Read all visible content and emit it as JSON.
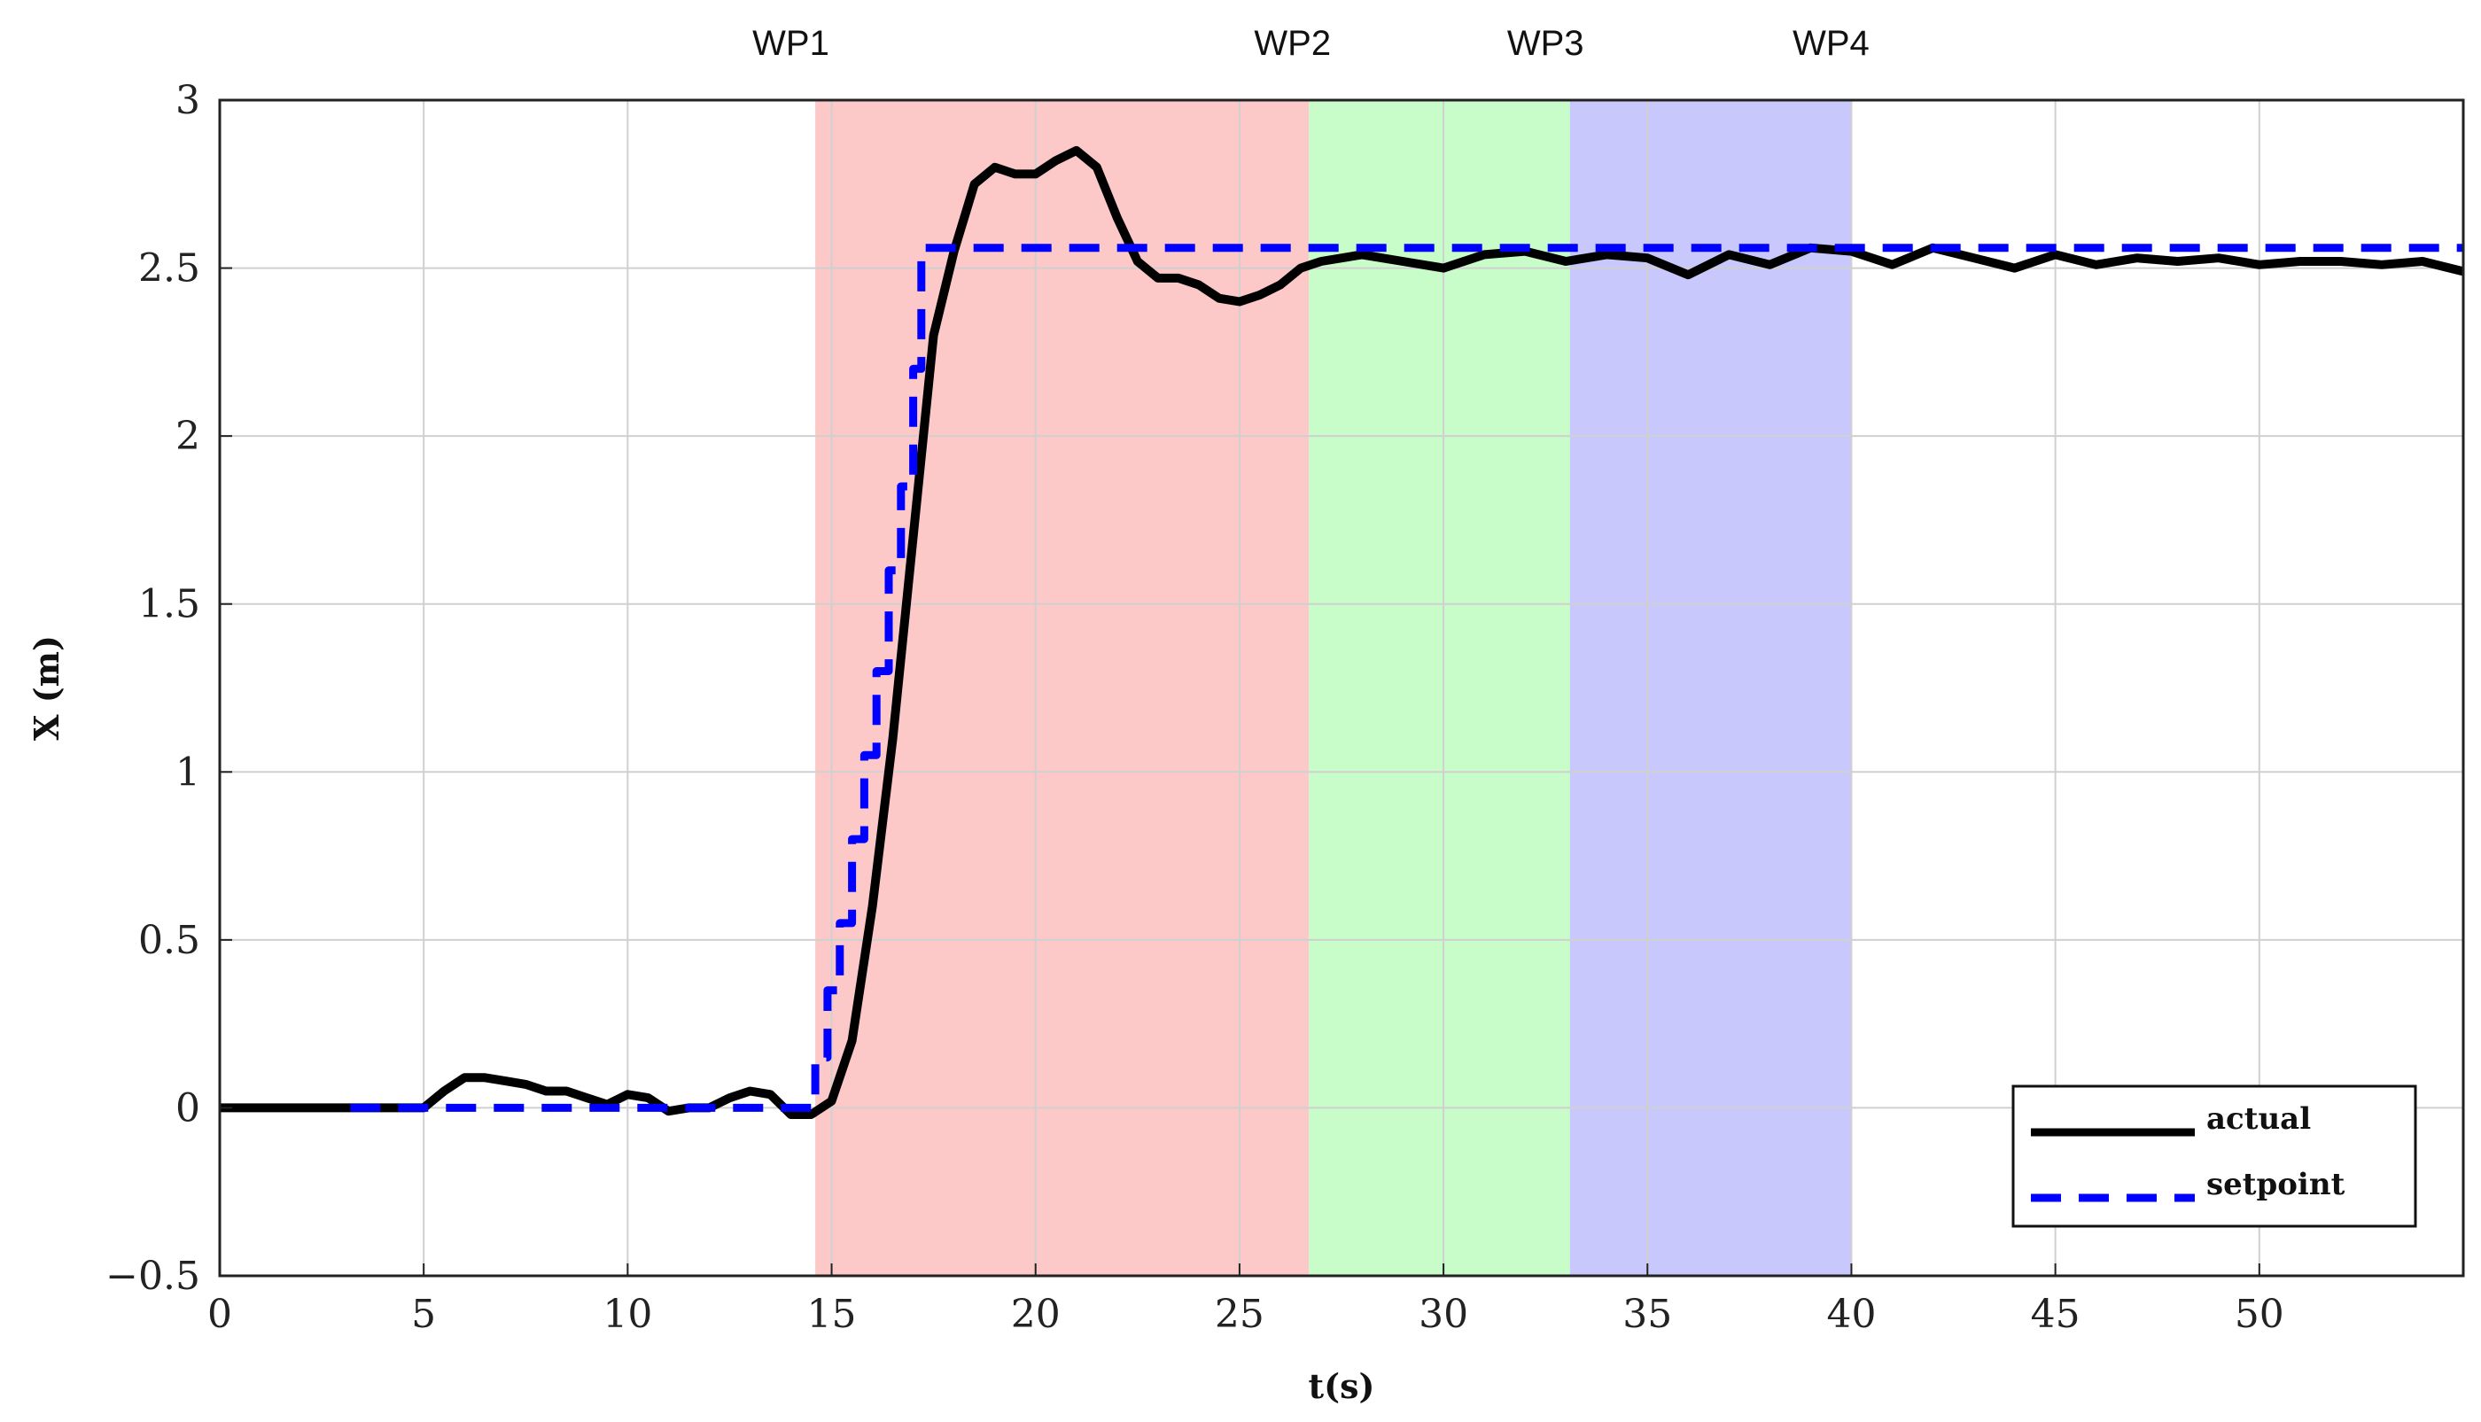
{
  "chart_data": {
    "type": "line",
    "title": "",
    "xlabel": "t(s)",
    "ylabel": "X (m)",
    "xlim": [
      0,
      55
    ],
    "ylim": [
      -0.5,
      3
    ],
    "grid": true,
    "x_ticks": [
      0,
      5,
      10,
      15,
      20,
      25,
      30,
      35,
      40,
      45,
      50
    ],
    "x_tick_labels": [
      "0",
      "5",
      "10",
      "15",
      "20",
      "25",
      "30",
      "35",
      "40",
      "45",
      "50"
    ],
    "y_ticks": [
      -0.5,
      0,
      0.5,
      1,
      1.5,
      2,
      2.5,
      3
    ],
    "y_tick_labels": [
      "−0.5",
      "0",
      "0.5",
      "1",
      "1.5",
      "2",
      "2.5",
      "3"
    ],
    "regions": [
      {
        "label": "WP1",
        "x_start": 14.6,
        "x_end": 26.7,
        "color": "#fcc8c8"
      },
      {
        "label": "WP2",
        "x_start": 26.7,
        "x_end": 33.1,
        "color": "#c8fcc8"
      },
      {
        "label": "WP3",
        "x_start": 33.1,
        "x_end": 40.0,
        "color": "#c8c8fc"
      },
      {
        "label": "WP4",
        "x_start": 40.0,
        "x_end": 40.0,
        "color": "#ffffff"
      }
    ],
    "wp_labels": [
      {
        "text": "WP1",
        "x": 14.0
      },
      {
        "text": "WP2",
        "x": 26.3
      },
      {
        "text": "WP3",
        "x": 32.5
      },
      {
        "text": "WP4",
        "x": 39.5
      }
    ],
    "legend": {
      "position": "bottom-right",
      "entries": [
        "actual",
        "setpoint"
      ]
    },
    "series": [
      {
        "name": "actual",
        "color": "#000000",
        "style": "solid",
        "x": [
          0,
          1,
          2,
          3,
          4,
          5,
          5.5,
          6,
          6.5,
          7,
          7.5,
          8,
          8.5,
          9,
          9.5,
          10,
          10.5,
          11,
          11.5,
          12,
          12.5,
          13,
          13.5,
          14,
          14.5,
          15,
          15.5,
          16,
          16.5,
          17,
          17.5,
          18,
          18.5,
          19,
          19.5,
          20,
          20.5,
          21,
          21.5,
          22,
          22.5,
          23,
          23.5,
          24,
          24.5,
          25,
          25.5,
          26,
          26.5,
          27,
          28,
          29,
          30,
          31,
          32,
          33,
          34,
          35,
          36,
          37,
          38,
          39,
          40,
          41,
          42,
          43,
          44,
          45,
          46,
          47,
          48,
          49,
          50,
          51,
          52,
          53,
          54,
          55
        ],
        "y": [
          0,
          0,
          0,
          0,
          0,
          0,
          0.05,
          0.09,
          0.09,
          0.08,
          0.07,
          0.05,
          0.05,
          0.03,
          0.01,
          0.04,
          0.03,
          -0.01,
          0.0,
          0.0,
          0.03,
          0.05,
          0.04,
          -0.02,
          -0.02,
          0.02,
          0.2,
          0.6,
          1.1,
          1.7,
          2.3,
          2.55,
          2.75,
          2.8,
          2.78,
          2.78,
          2.82,
          2.85,
          2.8,
          2.65,
          2.52,
          2.47,
          2.47,
          2.45,
          2.41,
          2.4,
          2.42,
          2.45,
          2.5,
          2.52,
          2.54,
          2.52,
          2.5,
          2.54,
          2.55,
          2.52,
          2.54,
          2.53,
          2.48,
          2.54,
          2.51,
          2.56,
          2.55,
          2.51,
          2.56,
          2.53,
          2.5,
          2.54,
          2.51,
          2.53,
          2.52,
          2.53,
          2.51,
          2.52,
          2.52,
          2.51,
          2.52,
          2.49
        ]
      },
      {
        "name": "setpoint",
        "color": "#0000ff",
        "style": "dashed",
        "x": [
          3.2,
          14.6,
          14.6,
          14.9,
          14.9,
          15.2,
          15.2,
          15.5,
          15.5,
          15.8,
          15.8,
          16.1,
          16.1,
          16.4,
          16.4,
          16.7,
          16.7,
          17.0,
          17.0,
          17.2,
          17.2,
          55
        ],
        "y": [
          0,
          0,
          0.15,
          0.15,
          0.35,
          0.35,
          0.55,
          0.55,
          0.8,
          0.8,
          1.05,
          1.05,
          1.3,
          1.3,
          1.6,
          1.6,
          1.85,
          1.85,
          2.2,
          2.2,
          2.56,
          2.56
        ]
      }
    ]
  }
}
